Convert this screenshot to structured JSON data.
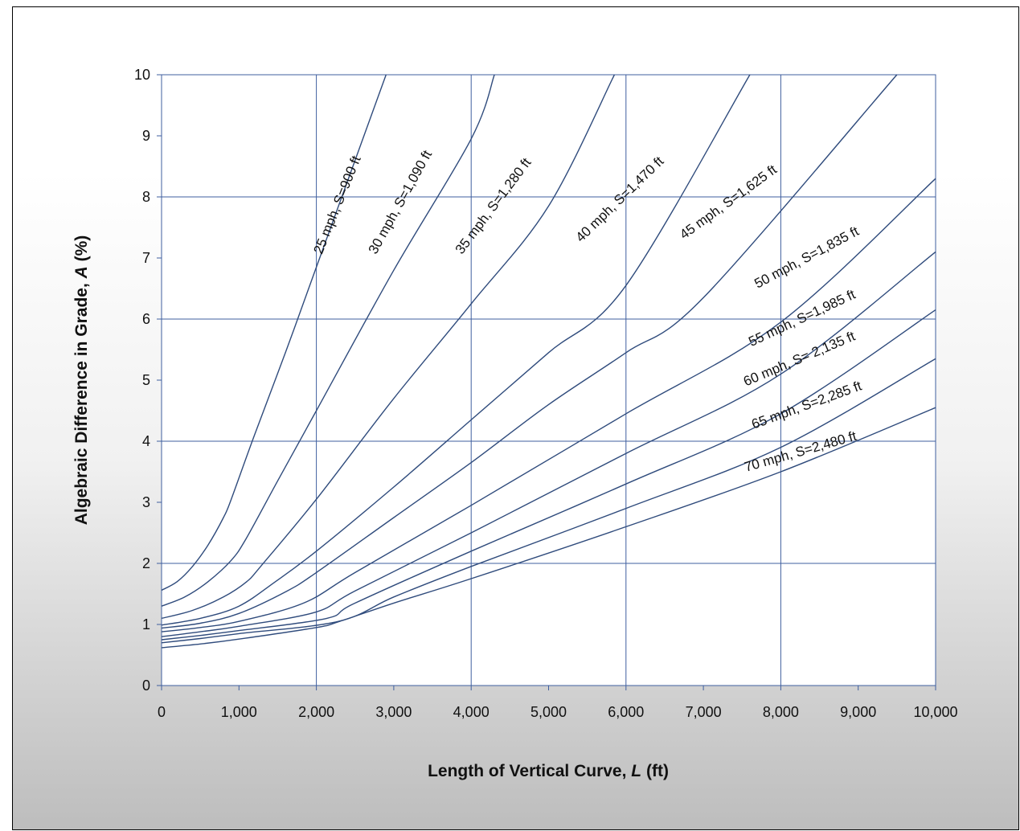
{
  "chart_data": {
    "type": "line",
    "title": "",
    "xlabel_parts": [
      "Length of Vertical Curve, ",
      "L",
      " (ft)"
    ],
    "ylabel_parts": [
      "Algebraic Difference in Grade, ",
      "A",
      " (%)"
    ],
    "xlim": [
      0,
      10000
    ],
    "ylim": [
      0,
      10
    ],
    "xticks": [
      0,
      1000,
      2000,
      3000,
      4000,
      5000,
      6000,
      7000,
      8000,
      9000,
      10000
    ],
    "xtick_labels": [
      "0",
      "1,000",
      "2,000",
      "3,000",
      "4,000",
      "5,000",
      "6,000",
      "7,000",
      "8,000",
      "9,000",
      "10,000"
    ],
    "yticks": [
      0,
      1,
      2,
      3,
      4,
      5,
      6,
      7,
      8,
      9,
      10
    ],
    "ytick_labels": [
      "0",
      "1",
      "2",
      "3",
      "4",
      "5",
      "6",
      "7",
      "8",
      "9",
      "10"
    ],
    "grid": true,
    "line_color": "#2f4b7c",
    "grid_color": "#3f5f9f",
    "series": [
      {
        "name": "25 mph, S=900 ft",
        "points": [
          [
            0,
            1.56
          ],
          [
            200,
            1.7
          ],
          [
            400,
            1.95
          ],
          [
            600,
            2.3
          ],
          [
            800,
            2.75
          ],
          [
            900,
            3.05
          ],
          [
            1200,
            4.1
          ],
          [
            1600,
            5.45
          ],
          [
            2000,
            6.85
          ],
          [
            2500,
            8.6
          ],
          [
            2900,
            10
          ]
        ]
      },
      {
        "name": "30 mph, S=1,090 ft",
        "points": [
          [
            0,
            1.3
          ],
          [
            300,
            1.45
          ],
          [
            600,
            1.7
          ],
          [
            900,
            2.05
          ],
          [
            1090,
            2.4
          ],
          [
            1500,
            3.35
          ],
          [
            2000,
            4.5
          ],
          [
            3000,
            6.8
          ],
          [
            4000,
            8.95
          ],
          [
            4300,
            10
          ]
        ]
      },
      {
        "name": "35 mph, S=1,280 ft",
        "points": [
          [
            0,
            1.1
          ],
          [
            400,
            1.23
          ],
          [
            800,
            1.45
          ],
          [
            1100,
            1.7
          ],
          [
            1280,
            1.95
          ],
          [
            2000,
            3.05
          ],
          [
            3000,
            4.7
          ],
          [
            4000,
            6.25
          ],
          [
            5000,
            7.85
          ],
          [
            5850,
            10
          ]
        ]
      },
      {
        "name": "40 mph, S=1,470 ft",
        "points": [
          [
            0,
            0.99
          ],
          [
            500,
            1.1
          ],
          [
            1000,
            1.3
          ],
          [
            1470,
            1.7
          ],
          [
            2000,
            2.2
          ],
          [
            3000,
            3.25
          ],
          [
            4000,
            4.35
          ],
          [
            5000,
            5.45
          ],
          [
            6000,
            6.55
          ],
          [
            7600,
            10
          ]
        ]
      },
      {
        "name": "45 mph, S=1,625 ft",
        "points": [
          [
            0,
            0.94
          ],
          [
            500,
            1.02
          ],
          [
            1000,
            1.18
          ],
          [
            1625,
            1.55
          ],
          [
            2000,
            1.85
          ],
          [
            3000,
            2.75
          ],
          [
            4000,
            3.65
          ],
          [
            5000,
            4.6
          ],
          [
            6000,
            5.45
          ],
          [
            7000,
            6.35
          ],
          [
            9500,
            10
          ]
        ]
      },
      {
        "name": "50 mph, S=1,835 ft",
        "points": [
          [
            0,
            0.88
          ],
          [
            500,
            0.95
          ],
          [
            1000,
            1.05
          ],
          [
            1835,
            1.35
          ],
          [
            2500,
            1.85
          ],
          [
            4000,
            2.95
          ],
          [
            6000,
            4.45
          ],
          [
            8000,
            5.95
          ],
          [
            10000,
            8.3
          ]
        ]
      },
      {
        "name": "55 mph, S=1,985 ft",
        "points": [
          [
            0,
            0.8
          ],
          [
            500,
            0.88
          ],
          [
            1000,
            0.97
          ],
          [
            1985,
            1.2
          ],
          [
            2500,
            1.55
          ],
          [
            4000,
            2.5
          ],
          [
            6000,
            3.8
          ],
          [
            8000,
            5.1
          ],
          [
            10000,
            7.1
          ]
        ]
      },
      {
        "name": "60 mph, S= 2,135 ft",
        "points": [
          [
            0,
            0.75
          ],
          [
            500,
            0.82
          ],
          [
            1000,
            0.9
          ],
          [
            2135,
            1.1
          ],
          [
            2500,
            1.35
          ],
          [
            4000,
            2.2
          ],
          [
            6000,
            3.3
          ],
          [
            8000,
            4.45
          ],
          [
            10000,
            6.15
          ]
        ]
      },
      {
        "name": "65 mph, S=2,285 ft",
        "points": [
          [
            0,
            0.7
          ],
          [
            500,
            0.77
          ],
          [
            1000,
            0.85
          ],
          [
            2285,
            1.05
          ],
          [
            3000,
            1.45
          ],
          [
            4000,
            1.95
          ],
          [
            6000,
            2.9
          ],
          [
            8000,
            3.9
          ],
          [
            10000,
            5.35
          ]
        ]
      },
      {
        "name": "70 mph, S=2,480 ft",
        "points": [
          [
            0,
            0.62
          ],
          [
            500,
            0.68
          ],
          [
            1000,
            0.76
          ],
          [
            2000,
            0.95
          ],
          [
            2300,
            1.05
          ],
          [
            3000,
            1.35
          ],
          [
            4000,
            1.75
          ],
          [
            6000,
            2.6
          ],
          [
            8000,
            3.5
          ],
          [
            10000,
            4.55
          ]
        ]
      }
    ],
    "labels": [
      {
        "text": "25 mph, S=900 ft",
        "x": 2070,
        "y": 7.05,
        "angle": 68
      },
      {
        "text": "30 mph, S=1,090 ft",
        "x": 2770,
        "y": 7.05,
        "angle": 61
      },
      {
        "text": "35 mph, S=1,280 ft",
        "x": 3880,
        "y": 7.05,
        "angle": 53
      },
      {
        "text": "40 mph, S=1,470 ft",
        "x": 5420,
        "y": 7.25,
        "angle": 44
      },
      {
        "text": "45 mph, S=1,625 ft",
        "x": 6750,
        "y": 7.3,
        "angle": 36
      },
      {
        "text": "50 mph, S=1,835 ft",
        "x": 7700,
        "y": 6.5,
        "angle": 28
      },
      {
        "text": "55 mph, S=1,985 ft",
        "x": 7620,
        "y": 5.55,
        "angle": 25
      },
      {
        "text": "60 mph, S= 2,135 ft",
        "x": 7550,
        "y": 4.9,
        "angle": 23
      },
      {
        "text": "65 mph, S=2,285 ft",
        "x": 7650,
        "y": 4.2,
        "angle": 20
      },
      {
        "text": "70 mph, S=2,480 ft",
        "x": 7550,
        "y": 3.5,
        "angle": 16
      }
    ]
  }
}
